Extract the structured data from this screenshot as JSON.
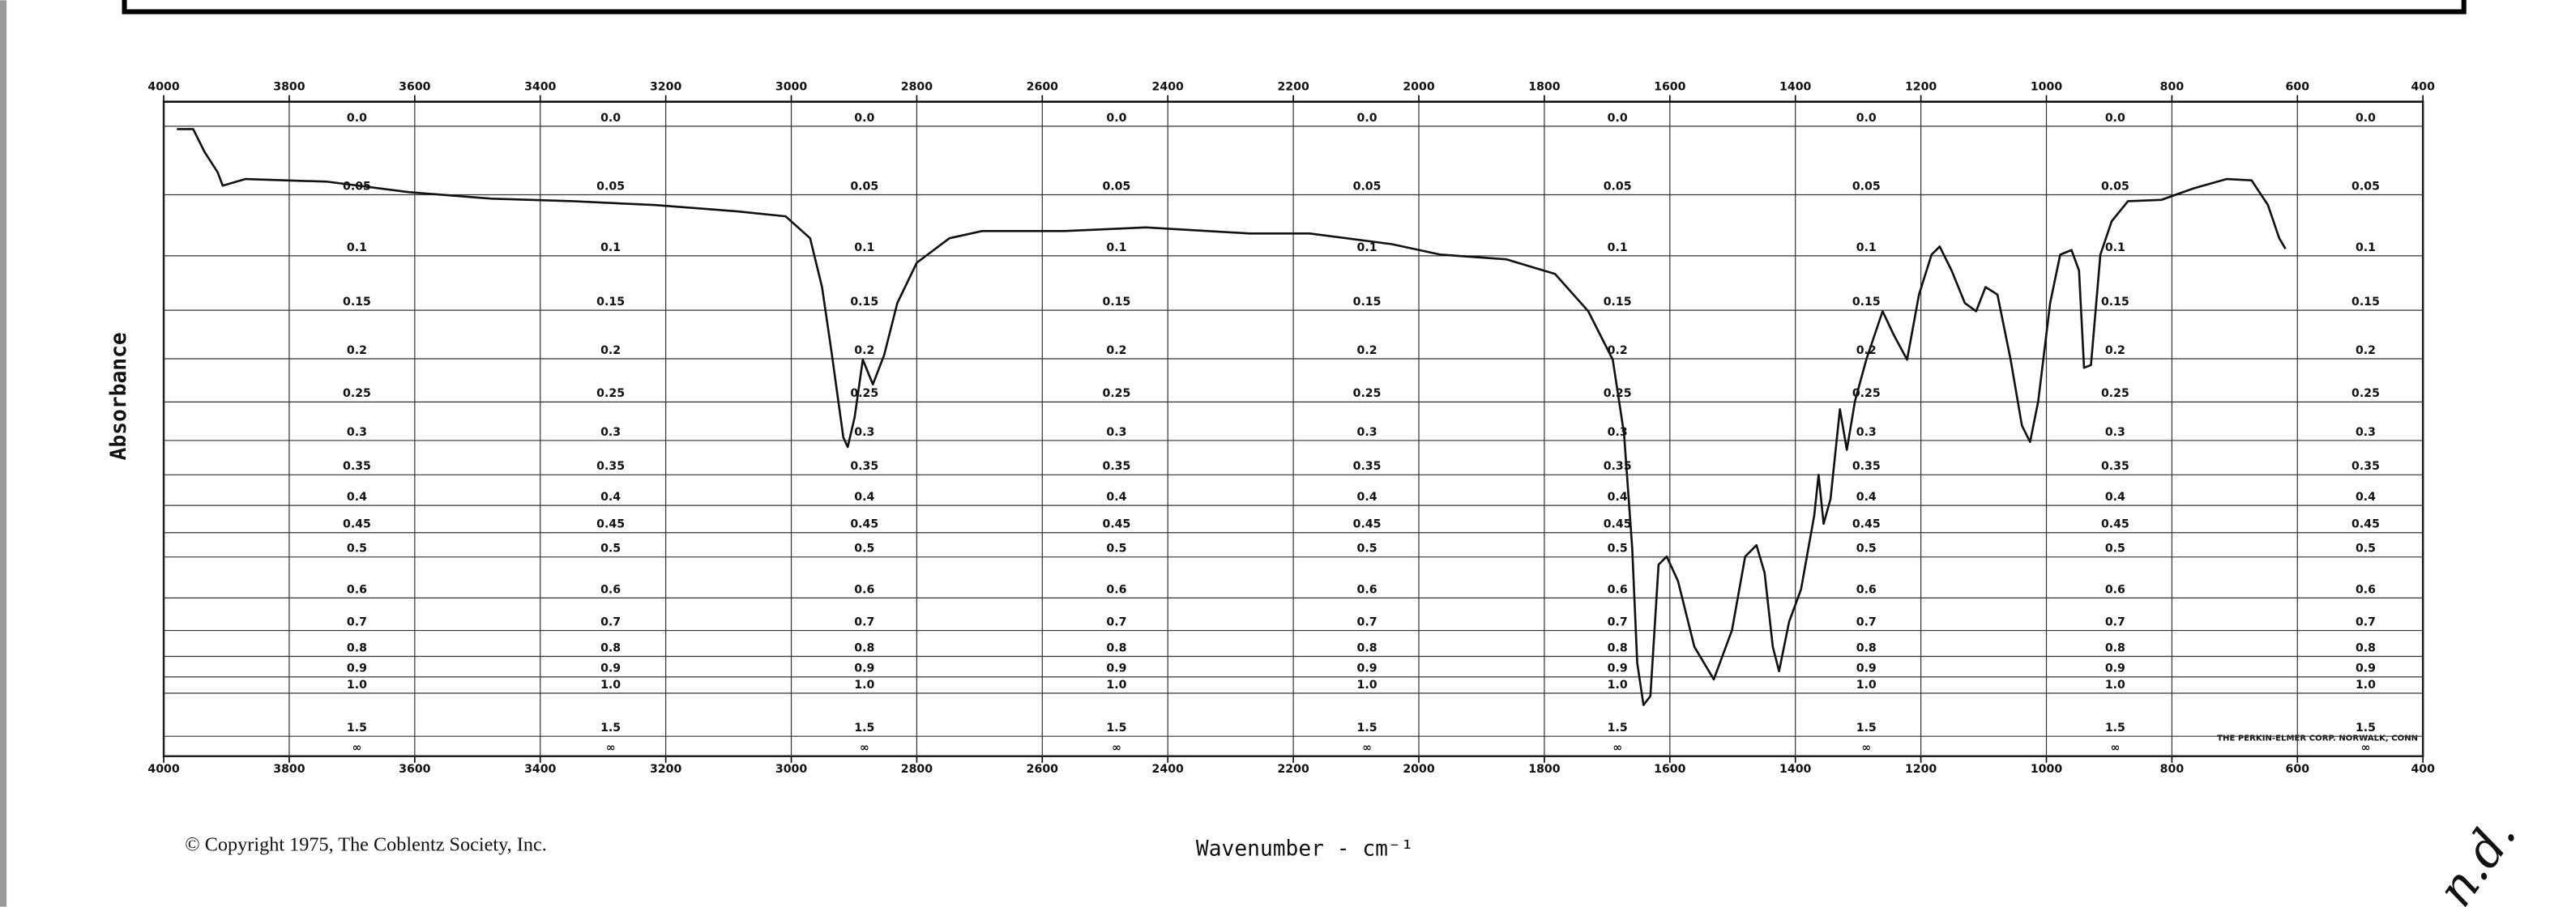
{
  "chart_data": {
    "type": "line",
    "y_label": "Absorbance",
    "x_label": "Wavenumber - cm⁻¹",
    "copyright": "© Copyright 1975, The Coblentz Society, Inc.",
    "manufacturer_note": "THE PERKIN-ELMER CORP. NORWALK, CONN",
    "handwritten_note": "n.d.",
    "color": "#111111",
    "grid": true,
    "yscale": "transmittance",
    "xlim": [
      4000,
      400
    ],
    "xticks": [
      4000,
      3800,
      3600,
      3400,
      3200,
      3000,
      2800,
      2600,
      2400,
      2200,
      2000,
      1800,
      1600,
      1400,
      1200,
      1000,
      800,
      600,
      400
    ],
    "yticks": [
      {
        "value": 0,
        "label": "0.0"
      },
      0.05,
      0.1,
      0.15,
      0.2,
      0.25,
      0.3,
      0.35,
      0.4,
      0.45,
      0.5,
      0.6,
      0.7,
      0.8,
      0.9,
      {
        "value": 1,
        "label": "1.0"
      },
      1.5,
      {
        "value": null,
        "label": "∞"
      }
    ],
    "x": [
      3979,
      3953,
      3935,
      3914,
      3906,
      3870,
      3739,
      3609,
      3478,
      3348,
      3217,
      3087,
      3009,
      2970,
      2951,
      2936,
      2917,
      2910,
      2899,
      2886,
      2870,
      2852,
      2831,
      2800,
      2748,
      2696,
      2565,
      2435,
      2270,
      2174,
      2043,
      1965,
      1861,
      1783,
      1730,
      1691,
      1673,
      1660,
      1652,
      1642,
      1631,
      1618,
      1605,
      1587,
      1561,
      1530,
      1501,
      1480,
      1462,
      1449,
      1436,
      1426,
      1410,
      1391,
      1370,
      1363,
      1355,
      1344,
      1329,
      1318,
      1305,
      1287,
      1261,
      1243,
      1222,
      1203,
      1183,
      1170,
      1151,
      1130,
      1112,
      1097,
      1078,
      1057,
      1039,
      1026,
      1013,
      994,
      978,
      960,
      948,
      940,
      929,
      914,
      896,
      870,
      817,
      765,
      713,
      673,
      647,
      629,
      619
    ],
    "values": [
      0.002,
      0.002,
      0.018,
      0.033,
      0.043,
      0.038,
      0.04,
      0.048,
      0.053,
      0.055,
      0.058,
      0.063,
      0.067,
      0.085,
      0.128,
      0.192,
      0.296,
      0.309,
      0.269,
      0.201,
      0.229,
      0.196,
      0.143,
      0.106,
      0.085,
      0.079,
      0.079,
      0.076,
      0.081,
      0.081,
      0.09,
      0.099,
      0.103,
      0.116,
      0.151,
      0.201,
      0.291,
      0.481,
      0.83,
      1.09,
      1.02,
      0.517,
      0.499,
      0.556,
      0.76,
      0.914,
      0.699,
      0.499,
      0.475,
      0.536,
      0.76,
      0.87,
      0.671,
      0.577,
      0.418,
      0.35,
      0.433,
      0.389,
      0.259,
      0.313,
      0.249,
      0.201,
      0.151,
      0.175,
      0.201,
      0.135,
      0.099,
      0.092,
      0.113,
      0.143,
      0.151,
      0.128,
      0.135,
      0.201,
      0.28,
      0.302,
      0.249,
      0.143,
      0.099,
      0.095,
      0.113,
      0.21,
      0.207,
      0.099,
      0.071,
      0.055,
      0.054,
      0.045,
      0.038,
      0.039,
      0.058,
      0.085,
      0.094
    ]
  }
}
